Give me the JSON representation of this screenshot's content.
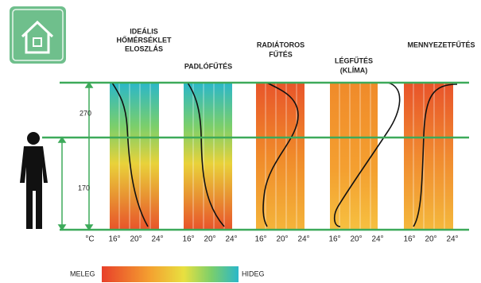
{
  "height_labels": [
    "270",
    "170"
  ],
  "unit": "°C",
  "scale_ticks": [
    "16°",
    "20°",
    "24°"
  ],
  "panels": [
    {
      "title": [
        "IDEÁLIS",
        "HŐMÉRSÉKLET",
        "ELOSZLÁS"
      ]
    },
    {
      "title": [
        "PADLÓFŰTÉS"
      ]
    },
    {
      "title": [
        "RADIÁTOROS",
        "FŰTÉS"
      ]
    },
    {
      "title": [
        "LÉGFŰTÉS",
        "(KLÍMA)"
      ]
    },
    {
      "title": [
        "MENNYEZETFŰTÉS"
      ]
    }
  ],
  "legend": {
    "warm": "MELEG",
    "cold": "HIDEG"
  }
}
